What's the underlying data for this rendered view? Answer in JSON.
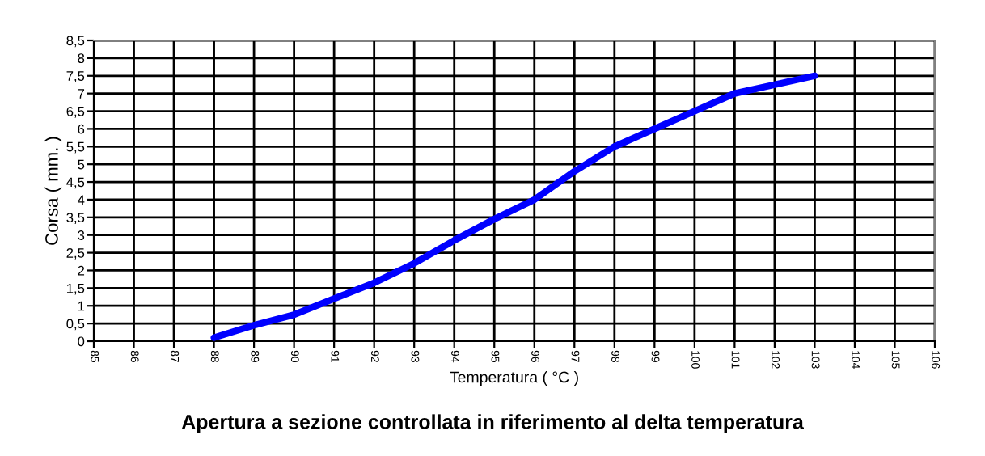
{
  "chart_data": {
    "type": "line",
    "title": "Apertura a sezione controllata in riferimento al delta temperatura",
    "xlabel": "Temperatura ( °C )",
    "ylabel": "Corsa ( mm. )",
    "x": [
      88,
      89,
      90,
      91,
      92,
      93,
      94,
      95,
      96,
      97,
      98,
      99,
      100,
      101,
      102,
      103
    ],
    "series": [
      {
        "color": "#0000ff",
        "values": [
          0.1,
          0.45,
          0.75,
          1.2,
          1.65,
          2.2,
          2.85,
          3.45,
          4.0,
          4.8,
          5.5,
          6.0,
          6.5,
          7.0,
          7.25,
          7.5
        ]
      }
    ],
    "xlim": [
      85,
      106
    ],
    "xticks": [
      85,
      86,
      87,
      88,
      89,
      90,
      91,
      92,
      93,
      94,
      95,
      96,
      97,
      98,
      99,
      100,
      101,
      102,
      103,
      104,
      105,
      106
    ],
    "ylim": [
      0,
      8.5
    ],
    "yticks": [
      0,
      {
        "value": 0.5,
        "label": "0,5"
      },
      1,
      {
        "value": 1.5,
        "label": "1,5"
      },
      2,
      {
        "value": 2.5,
        "label": "2,5"
      },
      3,
      {
        "value": 3.5,
        "label": "3,5"
      },
      4,
      {
        "value": 4.5,
        "label": "4,5"
      },
      5,
      {
        "value": 5.5,
        "label": "5,5"
      },
      6,
      {
        "value": 6.5,
        "label": "6,5"
      },
      7,
      {
        "value": 7.5,
        "label": "7,5"
      },
      8,
      {
        "value": 8.5,
        "label": "8,5"
      }
    ],
    "grid": true,
    "marker": "none",
    "line_style": "solid"
  }
}
